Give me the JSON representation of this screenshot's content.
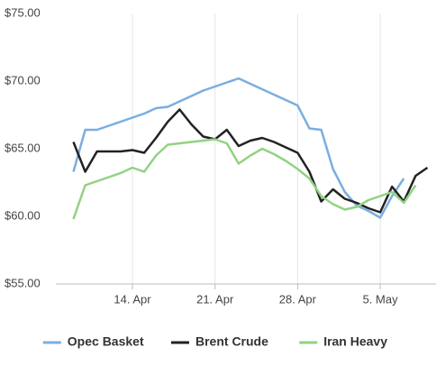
{
  "chart_data": {
    "type": "line",
    "categories": [
      null,
      null,
      null,
      null,
      null,
      "14. Apr",
      null,
      null,
      null,
      null,
      null,
      null,
      "21. Apr",
      null,
      null,
      null,
      null,
      null,
      null,
      "28. Apr",
      null,
      null,
      null,
      null,
      null,
      null,
      "5. May",
      null,
      null,
      null,
      null
    ],
    "series": [
      {
        "name": "Opec Basket",
        "color": "#7aaee0",
        "values": [
          63.3,
          66.4,
          66.4,
          66.7,
          67.0,
          67.3,
          67.6,
          68.0,
          68.1,
          68.5,
          68.9,
          69.3,
          69.6,
          69.9,
          70.2,
          69.8,
          69.4,
          69.0,
          68.6,
          68.2,
          66.5,
          66.4,
          63.5,
          61.8,
          60.8,
          60.4,
          59.9,
          61.5,
          62.8,
          null,
          null
        ]
      },
      {
        "name": "Brent Crude",
        "color": "#222222",
        "values": [
          65.5,
          63.3,
          64.8,
          64.8,
          64.8,
          64.9,
          64.7,
          65.8,
          67.0,
          67.9,
          66.8,
          65.9,
          65.7,
          66.4,
          65.2,
          65.6,
          65.8,
          65.5,
          65.1,
          64.7,
          63.3,
          61.1,
          62.0,
          61.3,
          61.0,
          60.6,
          60.3,
          62.2,
          61.1,
          63.0,
          63.6
        ]
      },
      {
        "name": "Iran Heavy",
        "color": "#92d283",
        "values": [
          59.8,
          62.3,
          62.6,
          62.9,
          63.2,
          63.6,
          63.3,
          64.5,
          65.3,
          65.4,
          65.5,
          65.6,
          65.7,
          65.4,
          63.9,
          64.5,
          65.0,
          64.6,
          64.1,
          63.5,
          62.8,
          61.5,
          60.9,
          60.5,
          60.7,
          61.2,
          61.5,
          61.8,
          61.0,
          62.3,
          null
        ]
      }
    ],
    "ylim": [
      55,
      75
    ],
    "yticks": [
      {
        "value": 55,
        "label": "$55.00"
      },
      {
        "value": 60,
        "label": "$60.00"
      },
      {
        "value": 65,
        "label": "$65.00"
      },
      {
        "value": 70,
        "label": "$70.00"
      },
      {
        "value": 75,
        "label": "$75.00"
      }
    ],
    "grid": true
  }
}
